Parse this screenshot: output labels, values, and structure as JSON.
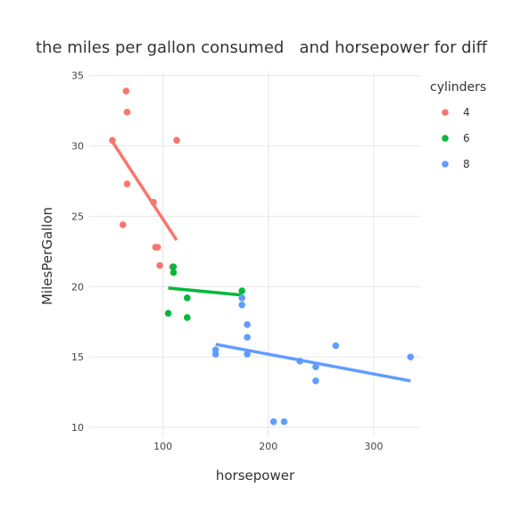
{
  "chart_data": {
    "type": "scatter",
    "title": "the miles per gallon consumed   and horsepower for diff",
    "xlabel": "horsepower",
    "ylabel": "MilesPerGallon",
    "xlim": [
      30,
      345
    ],
    "ylim": [
      9.3,
      35.3
    ],
    "xticks": [
      100,
      200,
      300
    ],
    "yticks": [
      10,
      15,
      20,
      25,
      30,
      35
    ],
    "grid": true,
    "legend": {
      "title": "cylinders",
      "position": "right"
    },
    "series": [
      {
        "name": "4",
        "color": "#F8766D",
        "points": [
          [
            52,
            30.4
          ],
          [
            62,
            24.4
          ],
          [
            65,
            33.9
          ],
          [
            66,
            32.4
          ],
          [
            66,
            27.3
          ],
          [
            91,
            26.0
          ],
          [
            93,
            22.8
          ],
          [
            95,
            22.8
          ],
          [
            97,
            21.5
          ],
          [
            109,
            21.4
          ],
          [
            113,
            30.4
          ]
        ],
        "fit": [
          [
            52,
            30.3
          ],
          [
            113,
            23.3
          ]
        ]
      },
      {
        "name": "6",
        "color": "#00BA38",
        "points": [
          [
            105,
            18.1
          ],
          [
            110,
            21.4
          ],
          [
            110,
            21.0
          ],
          [
            123,
            19.2
          ],
          [
            123,
            17.8
          ],
          [
            175,
            19.7
          ]
        ],
        "fit": [
          [
            105,
            19.9
          ],
          [
            175,
            19.4
          ]
        ]
      },
      {
        "name": "8",
        "color": "#619CFF",
        "points": [
          [
            150,
            15.5
          ],
          [
            150,
            15.2
          ],
          [
            175,
            19.2
          ],
          [
            175,
            18.7
          ],
          [
            180,
            17.3
          ],
          [
            180,
            16.4
          ],
          [
            180,
            15.2
          ],
          [
            205,
            10.4
          ],
          [
            215,
            10.4
          ],
          [
            230,
            14.7
          ],
          [
            245,
            14.3
          ],
          [
            245,
            13.3
          ],
          [
            264,
            15.8
          ],
          [
            335,
            15.0
          ]
        ],
        "fit": [
          [
            150,
            15.9
          ],
          [
            335,
            13.3
          ]
        ]
      }
    ]
  }
}
